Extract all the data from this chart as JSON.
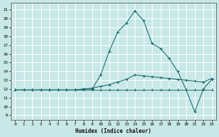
{
  "xlabel": "Humidex (Indice chaleur)",
  "bg_color": "#c8e8e8",
  "grid_color": "#ffffff",
  "line_color": "#1a6b6b",
  "xlim": [
    -0.5,
    23.5
  ],
  "ylim": [
    8.5,
    21.8
  ],
  "xticks": [
    0,
    1,
    2,
    3,
    4,
    5,
    6,
    7,
    8,
    9,
    10,
    11,
    12,
    13,
    14,
    15,
    16,
    17,
    18,
    19,
    20,
    21,
    22,
    23
  ],
  "yticks": [
    9,
    10,
    11,
    12,
    13,
    14,
    15,
    16,
    17,
    18,
    19,
    20,
    21
  ],
  "line1_x": [
    0,
    1,
    2,
    3,
    4,
    5,
    6,
    7,
    8,
    9,
    10,
    11,
    12,
    13,
    14,
    15,
    16,
    17,
    18,
    19,
    20,
    21,
    22,
    23
  ],
  "line1_y": [
    11.9,
    11.9,
    11.9,
    11.9,
    11.9,
    11.9,
    11.9,
    11.9,
    11.9,
    11.9,
    11.9,
    11.9,
    11.9,
    11.9,
    11.9,
    11.9,
    11.9,
    11.9,
    11.9,
    11.9,
    11.9,
    11.9,
    11.9,
    11.9
  ],
  "line2_x": [
    0,
    1,
    2,
    3,
    4,
    5,
    6,
    7,
    8,
    9,
    10,
    11,
    12,
    13,
    14,
    15,
    16,
    17,
    18,
    19,
    20,
    21,
    22,
    23
  ],
  "line2_y": [
    11.9,
    11.9,
    11.9,
    11.9,
    11.9,
    11.9,
    11.9,
    11.9,
    12.0,
    12.1,
    12.3,
    12.5,
    12.8,
    13.1,
    13.6,
    13.5,
    13.4,
    13.3,
    13.2,
    13.1,
    13.0,
    12.9,
    12.8,
    13.2
  ],
  "line3_x": [
    0,
    1,
    2,
    3,
    4,
    5,
    6,
    7,
    8,
    9,
    10,
    11,
    12,
    13,
    14,
    15,
    16,
    17,
    18,
    19,
    20,
    21,
    22,
    23
  ],
  "line3_y": [
    11.9,
    11.9,
    11.9,
    11.9,
    11.9,
    11.9,
    11.9,
    11.9,
    12.0,
    12.0,
    13.6,
    16.3,
    18.5,
    19.5,
    20.9,
    19.8,
    17.2,
    16.6,
    15.5,
    14.0,
    11.9,
    9.4,
    12.0,
    13.1
  ]
}
